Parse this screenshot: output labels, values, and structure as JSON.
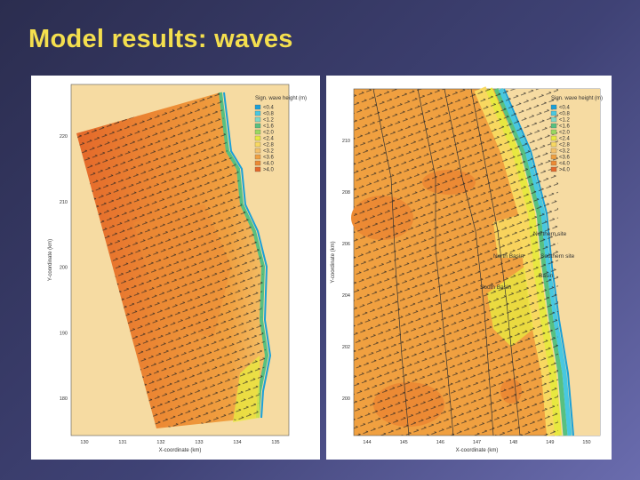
{
  "header": {
    "title": "Model results: waves"
  },
  "panels": [
    {
      "legend": {
        "title": "Sign. wave height (m)",
        "items": [
          {
            "label": "<0.4",
            "color": "#1aa0d8"
          },
          {
            "label": "<0.8",
            "color": "#48c8e0"
          },
          {
            "label": "<1.2",
            "color": "#7ed8c8"
          },
          {
            "label": "<1.6",
            "color": "#58c080"
          },
          {
            "label": "<2.0",
            "color": "#9ad860"
          },
          {
            "label": "<2.4",
            "color": "#e8e840"
          },
          {
            "label": "<2.8",
            "color": "#f8d860"
          },
          {
            "label": "<3.2",
            "color": "#f4c068"
          },
          {
            "label": "<3.6",
            "color": "#f0a040"
          },
          {
            "label": "<4.0",
            "color": "#ec8a34"
          },
          {
            "label": ">4.0",
            "color": "#e4682a"
          }
        ]
      },
      "x_label": "X-coordinate (km)",
      "y_label": "Y-coordinate (km)",
      "x_ticks": [
        "130",
        "131",
        "132",
        "133",
        "134",
        "135"
      ],
      "y_ticks": [
        "220",
        "210",
        "200",
        "190",
        "180"
      ]
    },
    {
      "legend": {
        "title": "Sign. wave height (m)",
        "items": [
          {
            "label": "<0.4",
            "color": "#1aa0d8"
          },
          {
            "label": "<0.8",
            "color": "#48c8e0"
          },
          {
            "label": "<1.2",
            "color": "#7ed8c8"
          },
          {
            "label": "<1.6",
            "color": "#58c080"
          },
          {
            "label": "<2.0",
            "color": "#9ad860"
          },
          {
            "label": "<2.4",
            "color": "#e8e840"
          },
          {
            "label": "<2.8",
            "color": "#f8d860"
          },
          {
            "label": "<3.2",
            "color": "#f4c068"
          },
          {
            "label": "<3.6",
            "color": "#f0a040"
          },
          {
            "label": "<4.0",
            "color": "#ec8a34"
          },
          {
            "label": ">4.0",
            "color": "#e4682a"
          }
        ]
      },
      "x_label": "X-coordinate (km)",
      "y_label": "Y-coordinate (km)",
      "x_ticks": [
        "144",
        "145",
        "146",
        "147",
        "148",
        "149",
        "150"
      ],
      "y_ticks": [
        "210",
        "208",
        "206",
        "204",
        "202",
        "200"
      ],
      "annotations": [
        "Northern site",
        "North Basin",
        "Southern site",
        "Basin",
        "South Basin"
      ]
    }
  ]
}
